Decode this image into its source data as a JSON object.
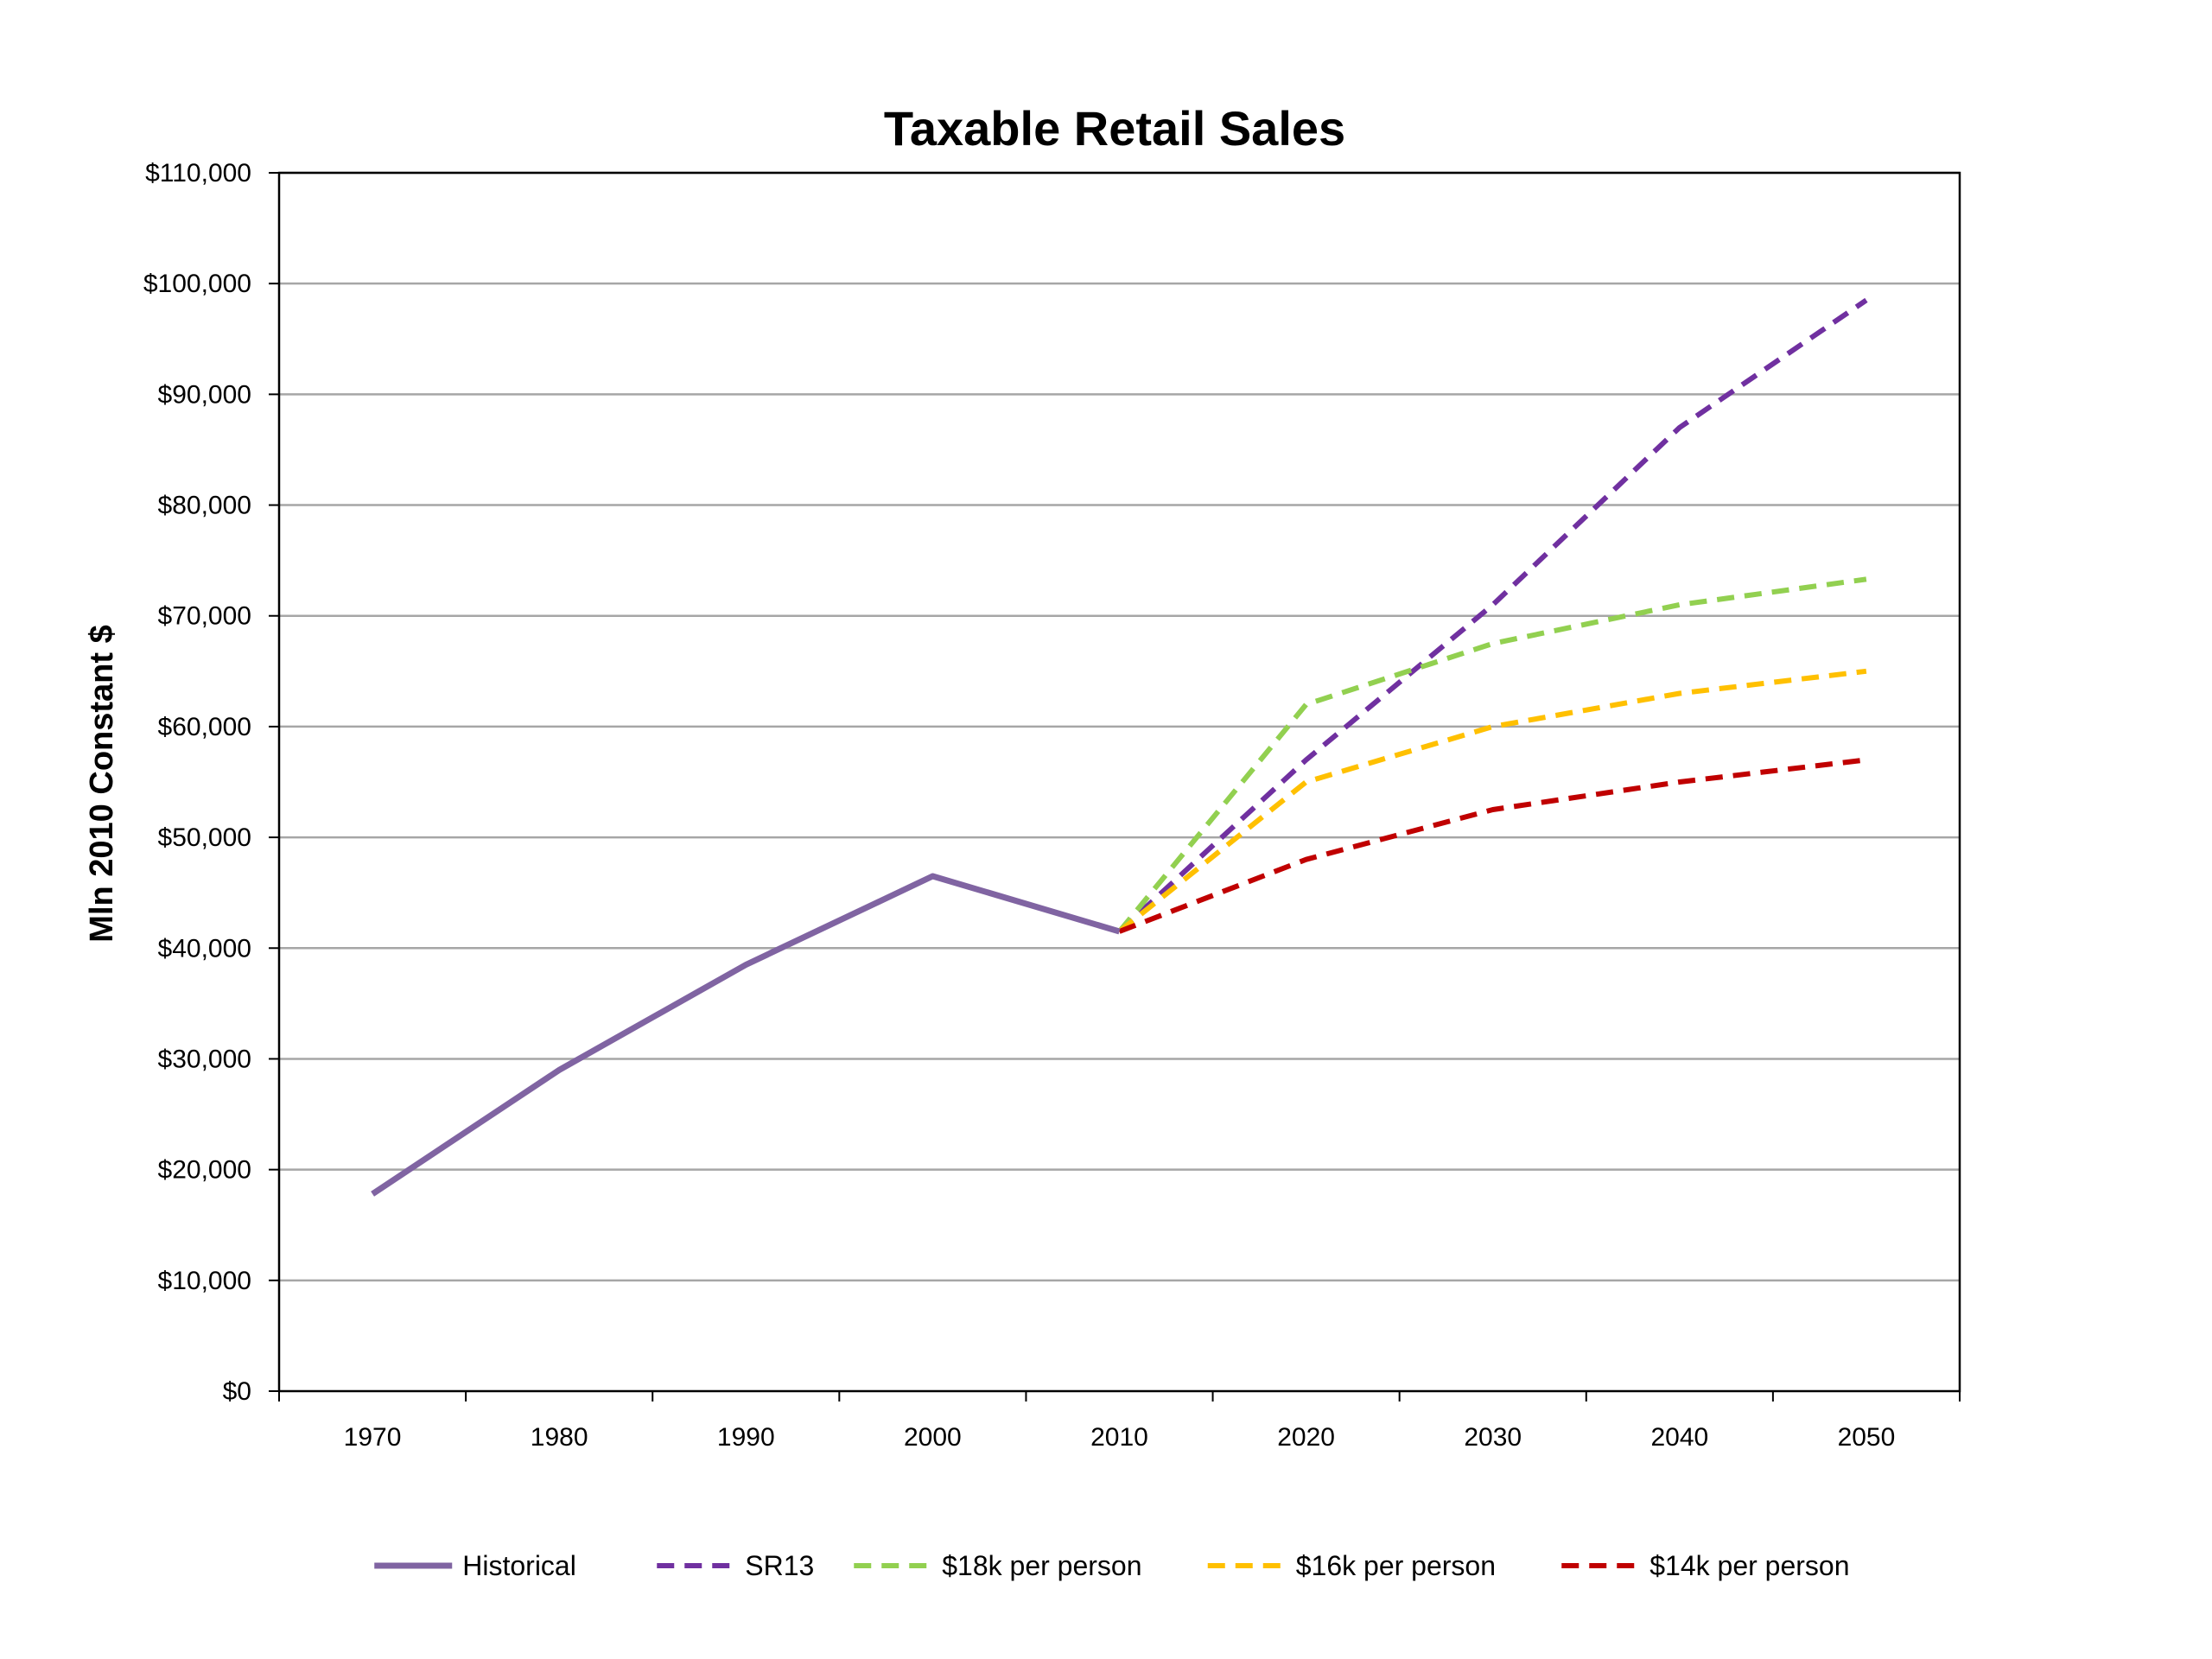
{
  "chart_data": {
    "type": "line",
    "title": "Taxable Retail Sales",
    "xlabel": "",
    "ylabel": "Mln 2010 Constant $",
    "categories": [
      "1970",
      "1980",
      "1990",
      "2000",
      "2010",
      "2020",
      "2030",
      "2040",
      "2050"
    ],
    "ylim": [
      0,
      110000
    ],
    "y_ticks": [
      0,
      10000,
      20000,
      30000,
      40000,
      50000,
      60000,
      70000,
      80000,
      90000,
      100000,
      110000
    ],
    "y_tick_labels": [
      "$0",
      "$10,000",
      "$20,000",
      "$30,000",
      "$40,000",
      "$50,000",
      "$60,000",
      "$70,000",
      "$80,000",
      "$90,000",
      "$100,000",
      "$110,000"
    ],
    "grid": true,
    "legend_position": "bottom",
    "series": [
      {
        "name": "Historical",
        "style": "solid",
        "color": "#8064A2",
        "values": [
          17800,
          29000,
          38500,
          46500,
          41500,
          null,
          null,
          null,
          null
        ]
      },
      {
        "name": "SR13",
        "style": "dashed",
        "color": "#7030A0",
        "values": [
          null,
          null,
          null,
          null,
          41500,
          57000,
          71000,
          87000,
          98500
        ]
      },
      {
        "name": "$18k per person",
        "style": "dashed",
        "color": "#92D050",
        "values": [
          null,
          null,
          null,
          null,
          41500,
          62000,
          67500,
          71000,
          73300
        ]
      },
      {
        "name": "$16k per person",
        "style": "dashed",
        "color": "#FFC000",
        "values": [
          null,
          null,
          null,
          null,
          41500,
          55000,
          60000,
          63000,
          65000
        ]
      },
      {
        "name": "$14k per person",
        "style": "dashed",
        "color": "#C00000",
        "values": [
          null,
          null,
          null,
          null,
          41500,
          48000,
          52500,
          55000,
          57000
        ]
      }
    ]
  }
}
